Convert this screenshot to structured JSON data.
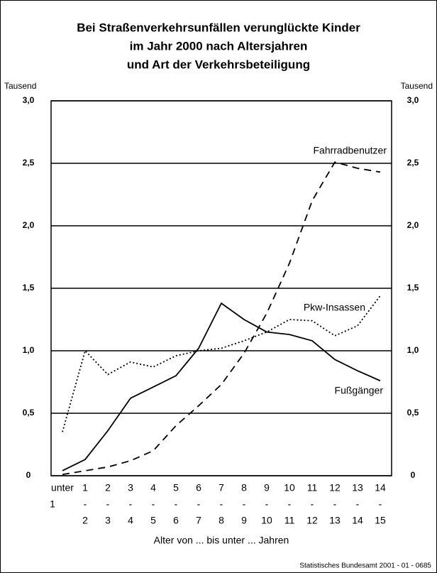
{
  "chart_data": {
    "type": "line",
    "title": [
      "Bei Straßenverkehrsunfällen verunglückte Kinder",
      "im Jahr 2000 nach Altersjahren",
      "und Art der Verkehrsbeteiligung"
    ],
    "y_axis_label": "Tausend",
    "x_axis_label": "Alter von ... bis unter ... Jahren",
    "source": "Statistisches Bundesamt 2001 - 01 - 0685",
    "categories": [
      [
        "unter",
        "1"
      ],
      [
        "1",
        "-",
        "2"
      ],
      [
        "2",
        "-",
        "3"
      ],
      [
        "3",
        "-",
        "4"
      ],
      [
        "4",
        "-",
        "5"
      ],
      [
        "5",
        "-",
        "6"
      ],
      [
        "6",
        "-",
        "7"
      ],
      [
        "7",
        "-",
        "8"
      ],
      [
        "8",
        "-",
        "9"
      ],
      [
        "9",
        "-",
        "10"
      ],
      [
        "10",
        "-",
        "11"
      ],
      [
        "11",
        "-",
        "12"
      ],
      [
        "12",
        "-",
        "13"
      ],
      [
        "13",
        "-",
        "14"
      ],
      [
        "14",
        "-",
        "15"
      ]
    ],
    "series": [
      {
        "name": "Fahrradbenutzer",
        "color": "#000000",
        "dash": "dashed",
        "values": [
          0.01,
          0.04,
          0.07,
          0.12,
          0.2,
          0.4,
          0.56,
          0.73,
          0.98,
          1.3,
          1.7,
          2.2,
          2.51,
          2.46,
          2.43
        ]
      },
      {
        "name": "Pkw-Insassen",
        "color": "#000000",
        "dash": "dotted",
        "values": [
          0.35,
          1.0,
          0.81,
          0.91,
          0.87,
          0.96,
          1.0,
          1.02,
          1.08,
          1.15,
          1.25,
          1.24,
          1.12,
          1.2,
          1.44
        ]
      },
      {
        "name": "Fußgänger",
        "color": "#000000",
        "dash": "solid",
        "values": [
          0.04,
          0.13,
          0.36,
          0.62,
          0.71,
          0.8,
          1.02,
          1.38,
          1.25,
          1.15,
          1.13,
          1.08,
          0.93,
          0.84,
          0.76
        ]
      }
    ],
    "ylim": [
      0,
      3
    ],
    "yticks": [
      0,
      {
        "value": 0.5,
        "label": "0,5"
      },
      {
        "value": 1,
        "label": "1,0"
      },
      {
        "value": 1.5,
        "label": "1,5"
      },
      {
        "value": 2,
        "label": "2,0"
      },
      {
        "value": 2.5,
        "label": "2,5"
      },
      {
        "value": 3,
        "label": "3,0"
      }
    ],
    "grid": true
  }
}
